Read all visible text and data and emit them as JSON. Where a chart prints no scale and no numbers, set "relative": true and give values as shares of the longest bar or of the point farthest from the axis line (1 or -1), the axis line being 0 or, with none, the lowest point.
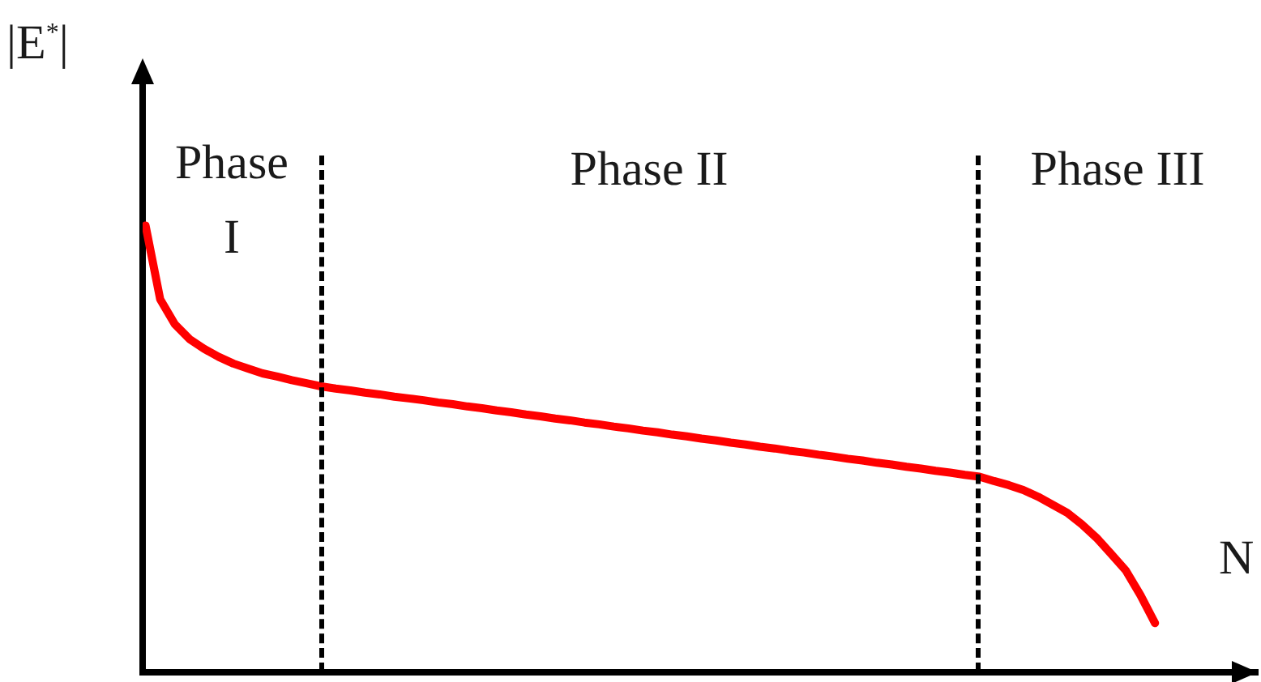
{
  "chart_data": {
    "type": "line",
    "relative": true,
    "xlabel": "N",
    "ylabel": "|E$^{*}$|",
    "categories": [
      null,
      null,
      null,
      null,
      null,
      null,
      null,
      null,
      null,
      null,
      null,
      null,
      null,
      null,
      null,
      null,
      null,
      null,
      null,
      null,
      null,
      null,
      null,
      null,
      null,
      null,
      null,
      null,
      null,
      null,
      null,
      null,
      null,
      null,
      null,
      null,
      null,
      null,
      null,
      null,
      null,
      null,
      null,
      null,
      null,
      null,
      null,
      null,
      null,
      null,
      null,
      null,
      null,
      null,
      null,
      null,
      null,
      null,
      null,
      null,
      null,
      null,
      null,
      null,
      null,
      null,
      null,
      null,
      null,
      null
    ],
    "series": [
      {
        "color": "#ff0000",
        "values": [
          1,
          0.835,
          0.779,
          0.746,
          0.724,
          0.706,
          0.691,
          0.68,
          0.669,
          0.662,
          0.654,
          0.647,
          0.64,
          0.635,
          0.631,
          0.626,
          0.622,
          0.617,
          0.613,
          0.609,
          0.604,
          0.6,
          0.595,
          0.591,
          0.586,
          0.582,
          0.577,
          0.573,
          0.568,
          0.564,
          0.559,
          0.555,
          0.55,
          0.546,
          0.541,
          0.537,
          0.532,
          0.528,
          0.523,
          0.519,
          0.514,
          0.51,
          0.505,
          0.501,
          0.496,
          0.492,
          0.487,
          0.483,
          0.478,
          0.474,
          0.469,
          0.465,
          0.46,
          0.456,
          0.451,
          0.447,
          0.442,
          0.438,
          0.428,
          0.419,
          0.408,
          0.393,
          0.375,
          0.357,
          0.331,
          0.301,
          0.265,
          0.228,
          0.173,
          0.11
        ]
      }
    ],
    "annotations": [
      "Phase I",
      "Phase II",
      "Phase III"
    ],
    "marker": "none",
    "line_style": "solid",
    "grid": false,
    "legend": false,
    "tick_labels": false
  }
}
